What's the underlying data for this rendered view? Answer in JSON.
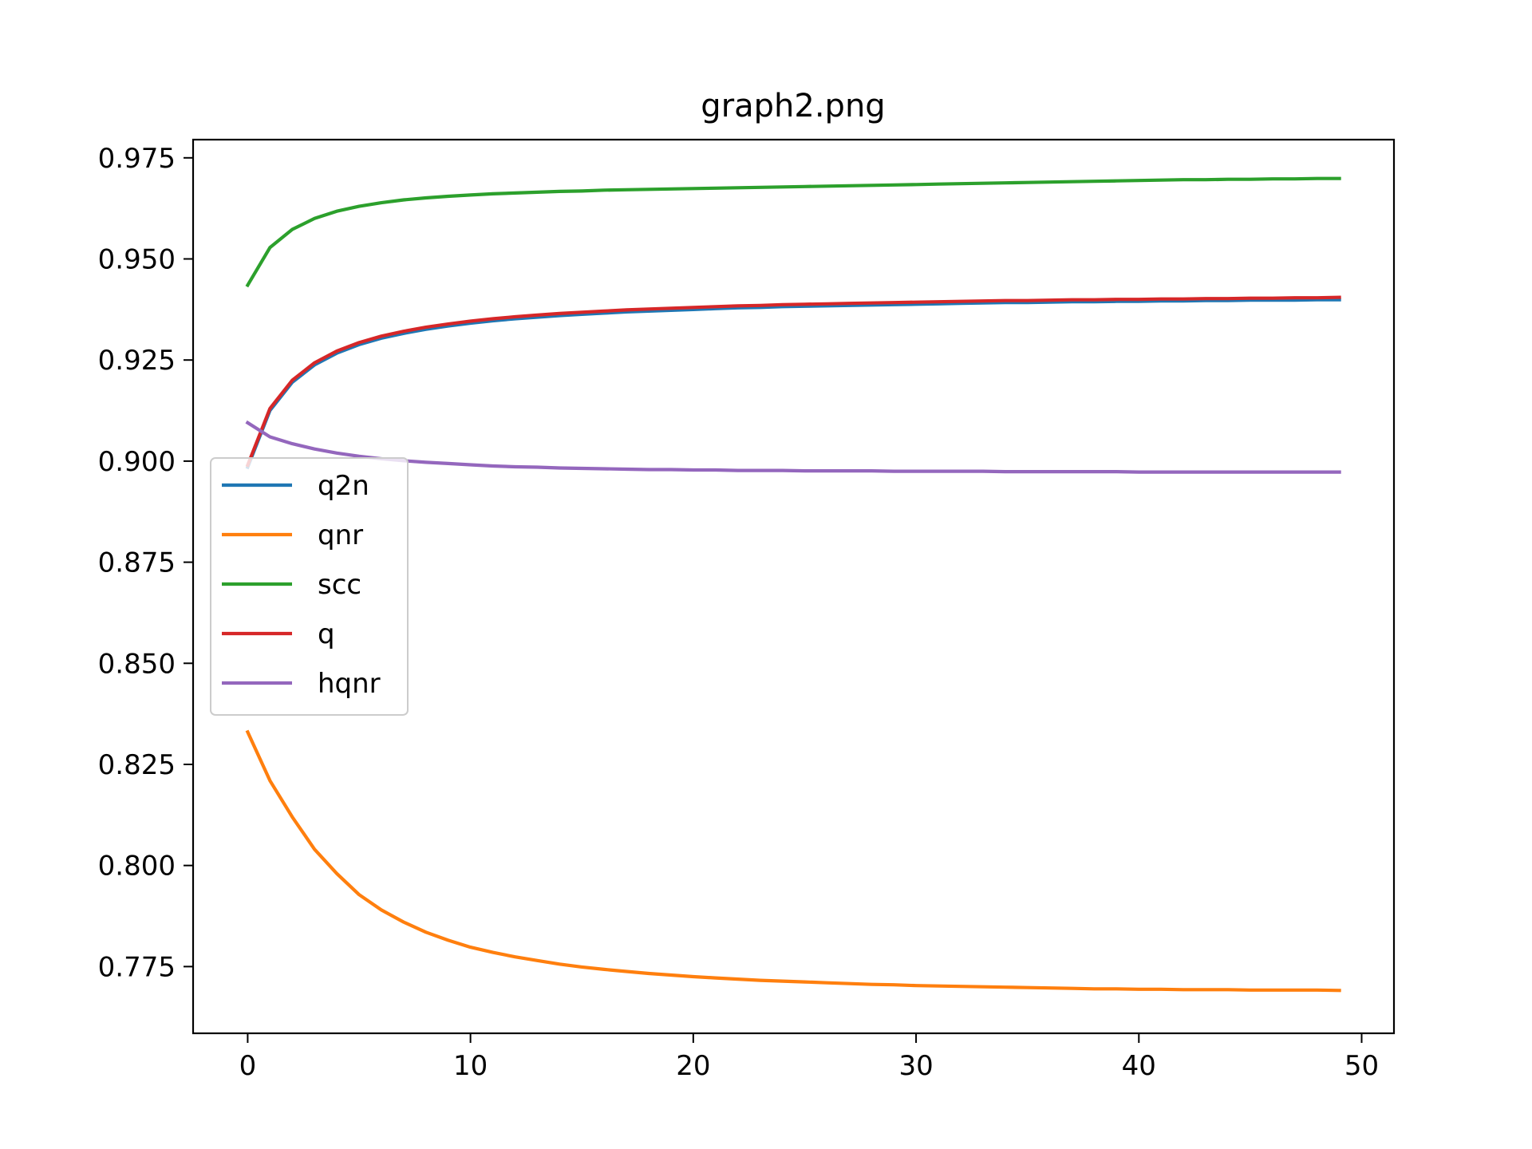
{
  "chart_data": {
    "type": "line",
    "title": "graph2.png",
    "xlabel": "",
    "ylabel": "",
    "xlim": [
      -2.45,
      51.45
    ],
    "ylim": [
      0.7585,
      0.9795
    ],
    "xticks": [
      0,
      10,
      20,
      30,
      40,
      50
    ],
    "xtick_labels": [
      "0",
      "10",
      "20",
      "30",
      "40",
      "50"
    ],
    "yticks": [
      0.775,
      0.8,
      0.825,
      0.85,
      0.875,
      0.9,
      0.925,
      0.95,
      0.975
    ],
    "ytick_labels": [
      "0.775",
      "0.800",
      "0.825",
      "0.850",
      "0.875",
      "0.900",
      "0.925",
      "0.950",
      "0.975"
    ],
    "grid": false,
    "legend_position": "center-left",
    "x": [
      0,
      1,
      2,
      3,
      4,
      5,
      6,
      7,
      8,
      9,
      10,
      11,
      12,
      13,
      14,
      15,
      16,
      17,
      18,
      19,
      20,
      21,
      22,
      23,
      24,
      25,
      26,
      27,
      28,
      29,
      30,
      31,
      32,
      33,
      34,
      35,
      36,
      37,
      38,
      39,
      40,
      41,
      42,
      43,
      44,
      45,
      46,
      47,
      48,
      49
    ],
    "series": [
      {
        "name": "q2n",
        "color": "#1f77b4",
        "values": [
          0.8985,
          0.9125,
          0.9195,
          0.9238,
          0.9267,
          0.9288,
          0.9304,
          0.9316,
          0.9326,
          0.9334,
          0.9341,
          0.9347,
          0.9352,
          0.9356,
          0.936,
          0.9363,
          0.9366,
          0.9369,
          0.9371,
          0.9373,
          0.9375,
          0.9377,
          0.9379,
          0.938,
          0.9382,
          0.9383,
          0.9384,
          0.9385,
          0.9386,
          0.9387,
          0.9388,
          0.9389,
          0.939,
          0.9391,
          0.9392,
          0.9392,
          0.9393,
          0.9394,
          0.9394,
          0.9395,
          0.9395,
          0.9396,
          0.9396,
          0.9397,
          0.9397,
          0.9398,
          0.9398,
          0.9398,
          0.9399,
          0.9399
        ]
      },
      {
        "name": "qnr",
        "color": "#ff7f0e",
        "values": [
          0.833,
          0.821,
          0.812,
          0.804,
          0.798,
          0.7928,
          0.789,
          0.786,
          0.7835,
          0.7815,
          0.7798,
          0.7785,
          0.7774,
          0.7765,
          0.7756,
          0.7749,
          0.7743,
          0.7738,
          0.7733,
          0.7729,
          0.7725,
          0.7722,
          0.7719,
          0.7716,
          0.7714,
          0.7712,
          0.771,
          0.7708,
          0.7706,
          0.7705,
          0.7703,
          0.7702,
          0.7701,
          0.77,
          0.7699,
          0.7698,
          0.7697,
          0.7696,
          0.7695,
          0.7695,
          0.7694,
          0.7694,
          0.7693,
          0.7693,
          0.7693,
          0.7692,
          0.7692,
          0.7692,
          0.7692,
          0.7691
        ]
      },
      {
        "name": "scc",
        "color": "#2ca02c",
        "values": [
          0.9435,
          0.9528,
          0.9573,
          0.96,
          0.9618,
          0.963,
          0.9639,
          0.9646,
          0.9651,
          0.9655,
          0.9658,
          0.9661,
          0.9663,
          0.9665,
          0.9667,
          0.9668,
          0.967,
          0.9671,
          0.9672,
          0.9673,
          0.9674,
          0.9675,
          0.9676,
          0.9677,
          0.9678,
          0.9679,
          0.968,
          0.9681,
          0.9682,
          0.9683,
          0.9684,
          0.9685,
          0.9686,
          0.9687,
          0.9688,
          0.9689,
          0.969,
          0.9691,
          0.9692,
          0.9693,
          0.9694,
          0.9695,
          0.9696,
          0.9696,
          0.9697,
          0.9697,
          0.9698,
          0.9698,
          0.9699,
          0.9699
        ]
      },
      {
        "name": "q",
        "color": "#d62728",
        "values": [
          0.899,
          0.913,
          0.92,
          0.9243,
          0.9272,
          0.9293,
          0.9309,
          0.9321,
          0.9331,
          0.9339,
          0.9346,
          0.9352,
          0.9357,
          0.9361,
          0.9365,
          0.9368,
          0.9371,
          0.9374,
          0.9376,
          0.9378,
          0.938,
          0.9382,
          0.9384,
          0.9385,
          0.9387,
          0.9388,
          0.9389,
          0.939,
          0.9391,
          0.9392,
          0.9393,
          0.9394,
          0.9395,
          0.9396,
          0.9397,
          0.9397,
          0.9398,
          0.9399,
          0.9399,
          0.94,
          0.94,
          0.9401,
          0.9401,
          0.9402,
          0.9402,
          0.9403,
          0.9403,
          0.9404,
          0.9404,
          0.9405
        ]
      },
      {
        "name": "hqnr",
        "color": "#9467bd",
        "values": [
          0.9095,
          0.906,
          0.9043,
          0.903,
          0.902,
          0.9012,
          0.9006,
          0.9001,
          0.8997,
          0.8994,
          0.8991,
          0.8988,
          0.8986,
          0.8985,
          0.8983,
          0.8982,
          0.8981,
          0.898,
          0.8979,
          0.8979,
          0.8978,
          0.8978,
          0.8977,
          0.8977,
          0.8977,
          0.8976,
          0.8976,
          0.8976,
          0.8976,
          0.8975,
          0.8975,
          0.8975,
          0.8975,
          0.8975,
          0.8974,
          0.8974,
          0.8974,
          0.8974,
          0.8974,
          0.8974,
          0.8973,
          0.8973,
          0.8973,
          0.8973,
          0.8973,
          0.8973,
          0.8973,
          0.8973,
          0.8973,
          0.8973
        ]
      }
    ]
  }
}
